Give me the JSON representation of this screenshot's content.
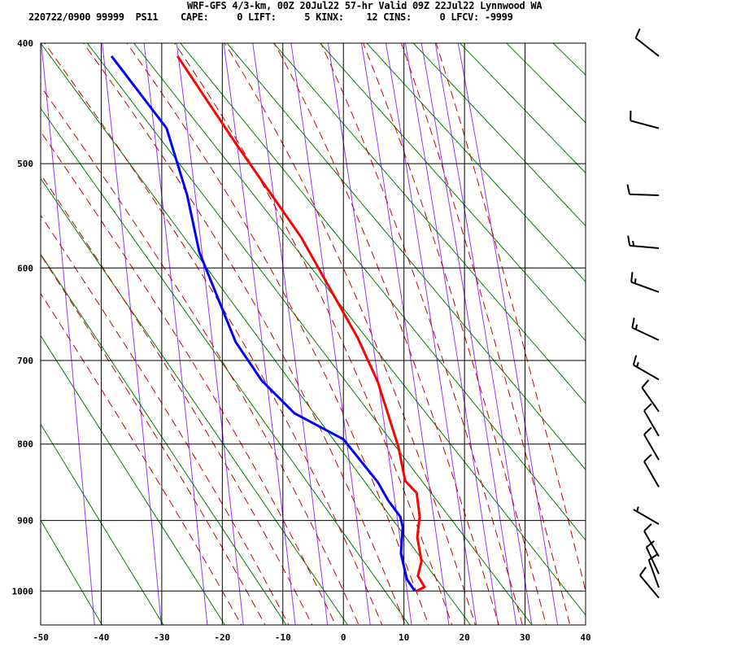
{
  "header": {
    "title": "WRF-GFS 4/3-km, 00Z 20Jul22 57-hr Valid 09Z 22Jul22 Lynnwood WA",
    "stats": "220722/0900 99999  PS11    CAPE:     0 LIFT:     5 KINX:    12 CINS:     0 LFCV: -9999"
  },
  "chart_data": {
    "type": "line",
    "title": "WRF-GFS 4/3-km, 00Z 20Jul22 57-hr Valid 09Z 22Jul22 Lynnwood WA",
    "xlabel": "",
    "ylabel": "",
    "xlim": [
      -50,
      40
    ],
    "ylim": [
      1050,
      400
    ],
    "yscale": "p^0.286",
    "grid": true,
    "x_ticks": [
      "-50",
      "-40",
      "-30",
      "-20",
      "-10",
      "0",
      "10",
      "20",
      "30",
      "40"
    ],
    "y_ticks": [
      "400",
      "500",
      "600",
      "700",
      "800",
      "900",
      "1000"
    ],
    "series": [
      {
        "role": "temperature",
        "color": "#ff0000",
        "points": [
          [
            410,
            -27.4
          ],
          [
            482,
            -17.8
          ],
          [
            569,
            -7.0
          ],
          [
            675,
            2.4
          ],
          [
            725,
            5.7
          ],
          [
            804,
            9.1
          ],
          [
            847,
            10.2
          ],
          [
            863,
            12.1
          ],
          [
            895,
            12.6
          ],
          [
            923,
            12.2
          ],
          [
            957,
            12.9
          ],
          [
            978,
            12.3
          ],
          [
            994,
            13.4
          ],
          [
            1000,
            12.1
          ]
        ]
      },
      {
        "role": "dewpoint",
        "color": "#0000ff",
        "points": [
          [
            410,
            -38.3
          ],
          [
            469,
            -29.2
          ],
          [
            529,
            -25.8
          ],
          [
            584,
            -23.8
          ],
          [
            679,
            -17.8
          ],
          [
            723,
            -13.5
          ],
          [
            762,
            -8.1
          ],
          [
            794,
            0.0
          ],
          [
            849,
            5.7
          ],
          [
            873,
            7.4
          ],
          [
            895,
            9.4
          ],
          [
            909,
            9.8
          ],
          [
            946,
            9.5
          ],
          [
            983,
            10.5
          ],
          [
            1000,
            11.8
          ]
        ]
      }
    ],
    "background": {
      "dry_adiabat_color": "#008000",
      "moist_adiabat_color": "#cc0000",
      "mixing_ratio_color": "#9933ff",
      "isotherm_isobar_color": "#000000"
    },
    "winds_kt": [
      [
        410,
        308,
        10
      ],
      [
        469,
        285,
        10
      ],
      [
        529,
        272,
        10
      ],
      [
        580,
        275,
        15
      ],
      [
        625,
        290,
        15
      ],
      [
        677,
        295,
        15
      ],
      [
        722,
        300,
        15
      ],
      [
        760,
        325,
        10
      ],
      [
        790,
        330,
        10
      ],
      [
        820,
        330,
        10
      ],
      [
        855,
        330,
        10
      ],
      [
        905,
        300,
        5
      ],
      [
        950,
        330,
        10
      ],
      [
        975,
        335,
        10
      ],
      [
        995,
        340,
        10
      ],
      [
        1010,
        320,
        10
      ]
    ]
  }
}
